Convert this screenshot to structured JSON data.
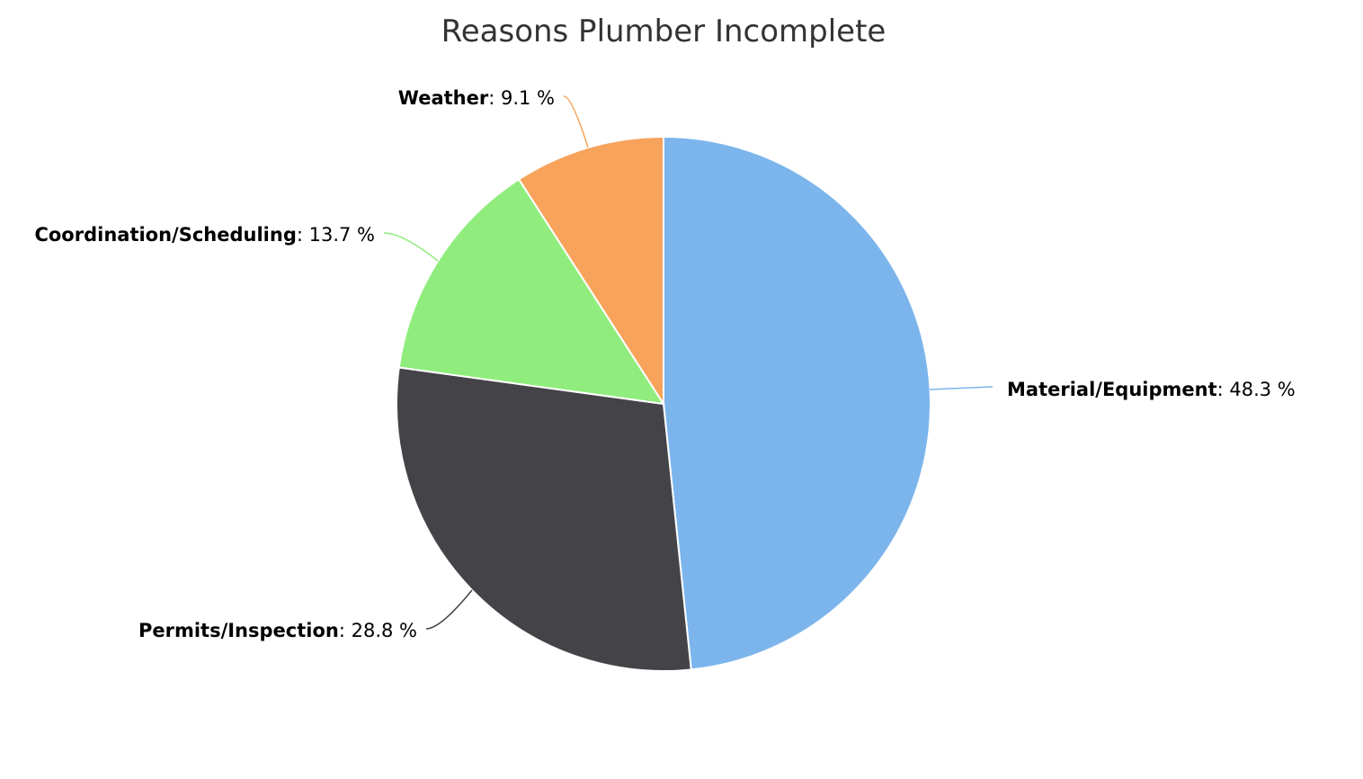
{
  "chart_data": {
    "type": "pie",
    "title": "Reasons Plumber Incomplete",
    "value_suffix": " %",
    "slices": [
      {
        "name": "Material/Equipment",
        "value": 48.3,
        "color": "#7cb5ec"
      },
      {
        "name": "Permits/Inspection",
        "value": 28.8,
        "color": "#434348"
      },
      {
        "name": "Coordination/Scheduling",
        "value": 13.7,
        "color": "#90ed7d"
      },
      {
        "name": "Weather",
        "value": 9.1,
        "color": "#f7a35c"
      }
    ],
    "legend": "none",
    "start_angle_deg": 0,
    "direction": "clockwise"
  }
}
